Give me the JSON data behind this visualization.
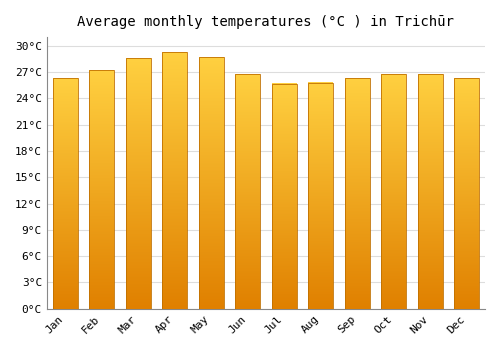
{
  "title": "Average monthly temperatures (°C ) in Trichūr",
  "months": [
    "Jan",
    "Feb",
    "Mar",
    "Apr",
    "May",
    "Jun",
    "Jul",
    "Aug",
    "Sep",
    "Oct",
    "Nov",
    "Dec"
  ],
  "values": [
    26.3,
    27.2,
    28.6,
    29.3,
    28.7,
    26.8,
    25.7,
    25.8,
    26.3,
    26.8,
    26.8,
    26.3
  ],
  "bar_color_bottom": "#E08000",
  "bar_color_top": "#FFD040",
  "bar_edge_color": "#C07000",
  "ylim": [
    0,
    31
  ],
  "ytick_step": 3,
  "background_color": "#FFFFFF",
  "grid_color": "#DDDDDD",
  "title_fontsize": 10,
  "tick_fontsize": 8,
  "bar_width": 0.68
}
